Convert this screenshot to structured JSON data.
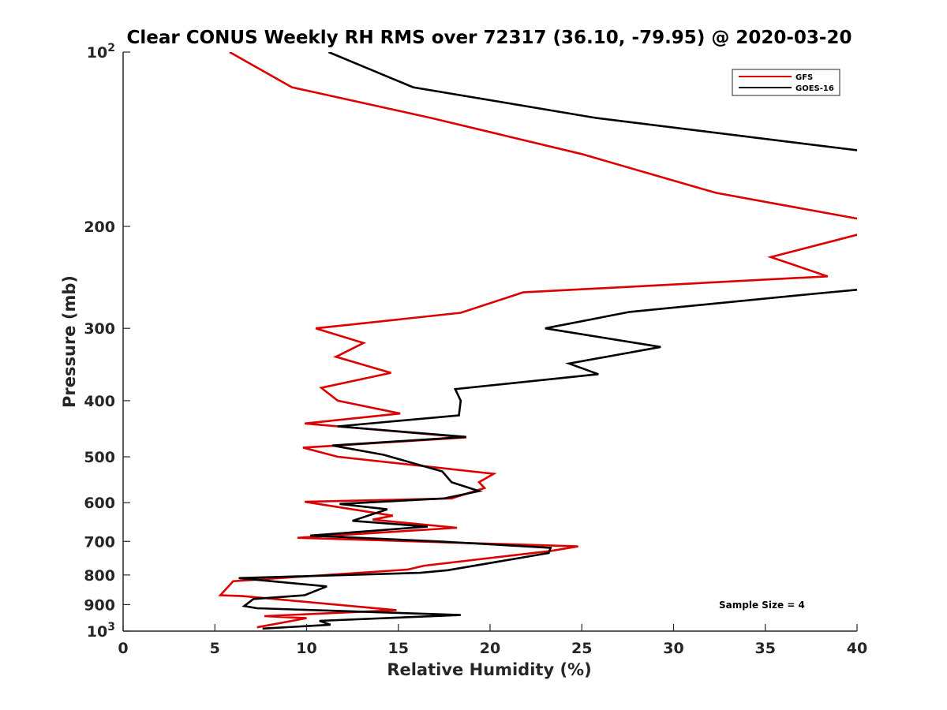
{
  "chart_data": {
    "type": "line",
    "title": "Clear CONUS Weekly RH RMS over 72317 (36.10, -79.95) @ 2020-03-20",
    "xlabel": "Relative Humidity (%)",
    "ylabel": "Pressure (mb)",
    "xlim": [
      0,
      40
    ],
    "ylim": [
      100,
      1000
    ],
    "y_scale": "log",
    "y_reversed": true,
    "x_ticks": [
      "0",
      "5",
      "10",
      "15",
      "20",
      "25",
      "30",
      "35",
      "40"
    ],
    "y_ticks": [
      {
        "value": 100,
        "base": "10",
        "exp": "2"
      },
      {
        "value": 200,
        "label": "200"
      },
      {
        "value": 300,
        "label": "300"
      },
      {
        "value": 400,
        "label": "400"
      },
      {
        "value": 500,
        "label": "500"
      },
      {
        "value": 600,
        "label": "600"
      },
      {
        "value": 700,
        "label": "700"
      },
      {
        "value": 800,
        "label": "800"
      },
      {
        "value": 900,
        "label": "900"
      },
      {
        "value": 1000,
        "base": "10",
        "exp": "3"
      }
    ],
    "legend_position": "top-right",
    "grid": false,
    "annotation": "Sample Size = 4",
    "series": [
      {
        "name": "GFS",
        "color": "#dd0000",
        "points": [
          [
            5.8,
            100
          ],
          [
            9.2,
            115
          ],
          [
            16.8,
            130
          ],
          [
            25.0,
            150
          ],
          [
            32.3,
            175
          ],
          [
            40.8,
            196
          ],
          [
            40.2,
            206
          ],
          [
            35.3,
            226
          ],
          [
            38.4,
            244
          ],
          [
            21.8,
            260
          ],
          [
            18.4,
            282
          ],
          [
            10.5,
            300
          ],
          [
            13.1,
            318
          ],
          [
            11.6,
            336
          ],
          [
            14.6,
            358
          ],
          [
            10.8,
            380
          ],
          [
            11.7,
            400
          ],
          [
            15.1,
            421
          ],
          [
            9.9,
            438
          ],
          [
            18.7,
            463
          ],
          [
            9.8,
            482
          ],
          [
            11.7,
            500
          ],
          [
            20.2,
            535
          ],
          [
            19.4,
            553
          ],
          [
            19.7,
            566
          ],
          [
            17.9,
            590
          ],
          [
            9.9,
            598
          ],
          [
            14.7,
            632
          ],
          [
            13.6,
            642
          ],
          [
            18.2,
            663
          ],
          [
            9.5,
            690
          ],
          [
            24.8,
            714
          ],
          [
            23.3,
            727
          ],
          [
            16.4,
            771
          ],
          [
            15.5,
            783
          ],
          [
            6.0,
            820
          ],
          [
            5.3,
            867
          ],
          [
            6.5,
            870
          ],
          [
            14.9,
            920
          ],
          [
            7.7,
            942
          ],
          [
            10.0,
            950
          ],
          [
            7.3,
            985
          ]
        ]
      },
      {
        "name": "GOES-16",
        "color": "#000000",
        "points": [
          [
            11.2,
            100
          ],
          [
            15.8,
            115
          ],
          [
            25.8,
            130
          ],
          [
            40.2,
            148
          ],
          [
            40.2,
            257
          ],
          [
            37.4,
            262
          ],
          [
            27.6,
            281
          ],
          [
            23.0,
            300
          ],
          [
            29.3,
            323
          ],
          [
            24.3,
            345
          ],
          [
            25.9,
            360
          ],
          [
            18.1,
            382
          ],
          [
            18.4,
            400
          ],
          [
            18.3,
            424
          ],
          [
            11.7,
            443
          ],
          [
            18.7,
            462
          ],
          [
            11.4,
            478
          ],
          [
            14.2,
            496
          ],
          [
            17.4,
            530
          ],
          [
            17.9,
            553
          ],
          [
            19.4,
            573
          ],
          [
            17.5,
            590
          ],
          [
            11.8,
            603
          ],
          [
            14.4,
            616
          ],
          [
            12.5,
            645
          ],
          [
            16.6,
            660
          ],
          [
            10.2,
            684
          ],
          [
            17.2,
            700
          ],
          [
            23.3,
            718
          ],
          [
            23.2,
            733
          ],
          [
            17.7,
            785
          ],
          [
            16.2,
            793
          ],
          [
            6.3,
            810
          ],
          [
            11.1,
            837
          ],
          [
            9.9,
            867
          ],
          [
            7.1,
            880
          ],
          [
            6.6,
            905
          ],
          [
            7.3,
            913
          ],
          [
            18.4,
            938
          ],
          [
            10.7,
            960
          ],
          [
            11.3,
            975
          ],
          [
            7.6,
            990
          ]
        ]
      }
    ]
  }
}
